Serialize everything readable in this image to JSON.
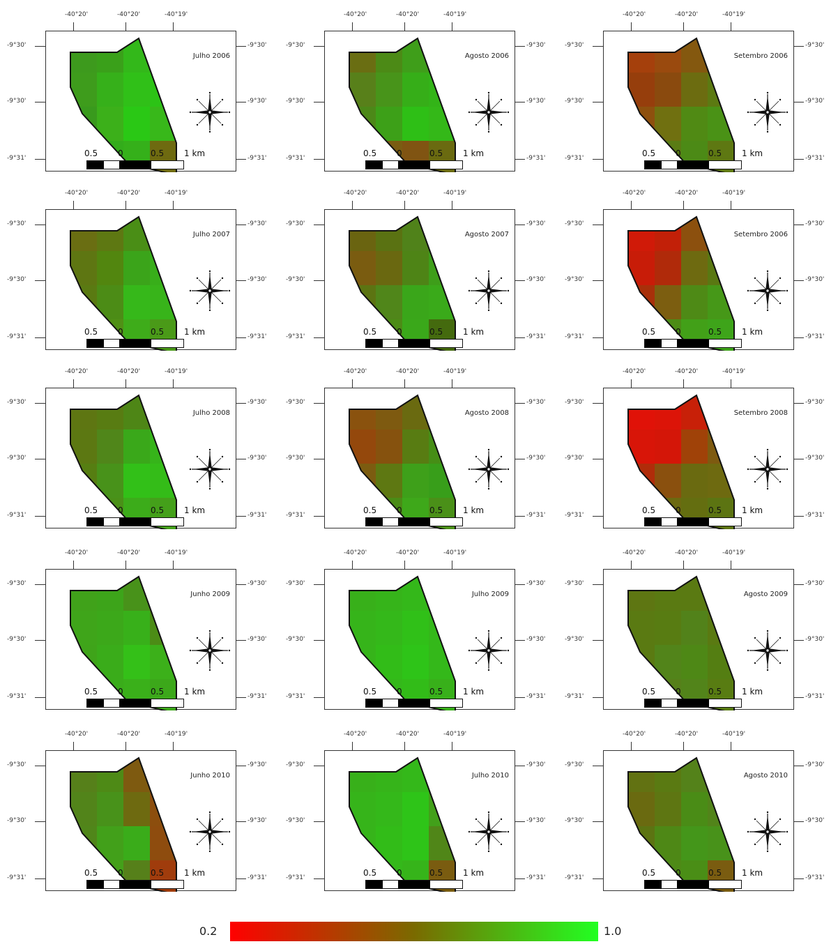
{
  "lon_labels": [
    "-40°20'",
    "-40°20'",
    "-40°19'"
  ],
  "lat_labels": [
    "-9°30'",
    "-9°30'",
    "-9°31'"
  ],
  "scalebar_labels": [
    "0.5",
    "0",
    "0.5",
    "1 km"
  ],
  "panels": [
    {
      "title": "Julho 2006",
      "colors": [
        "#3d9a1d",
        "#3aa01a",
        "#33b81a",
        "#2fbf18",
        "#3e9c1c",
        "#36b01a",
        "#30c018",
        "#2cc316",
        "#399a1d",
        "#3cb01a",
        "#2ac815",
        "#38b81a",
        "#3a9c1c",
        "#33ac1b",
        "#35b01a",
        "#6e6a10"
      ]
    },
    {
      "title": "Agosto 2006",
      "colors": [
        "#6a6e12",
        "#4c8a16",
        "#3f9e1a",
        "#3ca41a",
        "#58801a",
        "#48941a",
        "#36ae18",
        "#33b418",
        "#4c8818",
        "#3da018",
        "#2ebf16",
        "#34b818",
        "#4a8c18",
        "#7a5c12",
        "#805412",
        "#6a6a10"
      ]
    },
    {
      "title": "Setembro 2006",
      "colors": [
        "#a5400c",
        "#9a4a0e",
        "#84580f",
        "#726510",
        "#963e0c",
        "#8a4a0e",
        "#6c6c10",
        "#5c7a12",
        "#8e500e",
        "#707010",
        "#508a14",
        "#4a9216",
        "#7a5e10",
        "#5a7c14",
        "#4c8a16",
        "#5e7812"
      ]
    },
    {
      "title": "Julho 2007",
      "colors": [
        "#6a6e12",
        "#5e7812",
        "#4a8e16",
        "#4c8a16",
        "#5e7612",
        "#52860f",
        "#3ba41a",
        "#38ae1a",
        "#5a7a12",
        "#4c8c16",
        "#36b81a",
        "#38b41a",
        "#5a7a14",
        "#509016",
        "#3eac1a",
        "#4a9a18"
      ]
    },
    {
      "title": "Agosto 2007",
      "colors": [
        "#6a6410",
        "#5a7212",
        "#50821a",
        "#468e18",
        "#7a5c10",
        "#6a6810",
        "#4e8416",
        "#3e9e1a",
        "#5c7412",
        "#50861a",
        "#3aa61a",
        "#3aaa1a",
        "#5e7612",
        "#4c8c16",
        "#3aa81a",
        "#446a0e"
      ]
    },
    {
      "title": "Setembro 2006",
      "colors": [
        "#d01a08",
        "#c22008",
        "#8c500e",
        "#7a5c10",
        "#c81c08",
        "#b02a0a",
        "#6e6a10",
        "#5a7812",
        "#a8300a",
        "#7c5e10",
        "#4e8a16",
        "#469818",
        "#6a6a10",
        "#4c8c16",
        "#42a018",
        "#3ea41a"
      ]
    },
    {
      "title": "Julho 2008",
      "colors": [
        "#5e7612",
        "#587c12",
        "#4e8616",
        "#4c8a16",
        "#5c7812",
        "#50861a",
        "#3aa81a",
        "#36b41a",
        "#567e12",
        "#48921a",
        "#32c018",
        "#34bc18",
        "#5a7a12",
        "#4a9018",
        "#3cac1a",
        "#44a01a"
      ]
    },
    {
      "title": "Agosto 2008",
      "colors": [
        "#8a520e",
        "#7e5a10",
        "#6a6a10",
        "#587c12",
        "#94480c",
        "#86520e",
        "#587c12",
        "#468e16",
        "#7c5c10",
        "#5e7812",
        "#3ea01a",
        "#389e1a",
        "#66701a",
        "#4a8c16",
        "#3ea81a",
        "#4a9018"
      ]
    },
    {
      "title": "Setembro 2008",
      "colors": [
        "#e01208",
        "#dc1408",
        "#c82008",
        "#9a4a0c",
        "#d81508",
        "#d41608",
        "#a04208",
        "#7e5a10",
        "#b02c0a",
        "#8a500e",
        "#6a6a10",
        "#6e6a10",
        "#7a5e10",
        "#6c6a10",
        "#646e10",
        "#5c7412"
      ]
    },
    {
      "title": "Junho 2009",
      "colors": [
        "#40a21a",
        "#3da41a",
        "#48921a",
        "#58801a",
        "#3fa51a",
        "#3ca81a",
        "#38b01a",
        "#4c8c16",
        "#3fa41a",
        "#3aac1a",
        "#34c018",
        "#3cb01a",
        "#40a01a",
        "#3aac1a",
        "#3ab01a",
        "#3ca81a"
      ]
    },
    {
      "title": "Julho 2009",
      "colors": [
        "#38b01a",
        "#36b41a",
        "#34b81a",
        "#38b01a",
        "#36b41a",
        "#34b81a",
        "#30c018",
        "#34b81a",
        "#36b41a",
        "#32bc18",
        "#2ec418",
        "#34b81a",
        "#38b01a",
        "#34b81a",
        "#32bc18",
        "#38b01a"
      ]
    },
    {
      "title": "Agosto 2009",
      "colors": [
        "#5e7612",
        "#5a7a12",
        "#5a7a12",
        "#5e7612",
        "#5a7a12",
        "#587c12",
        "#52821a",
        "#5a7a12",
        "#5a7a12",
        "#52841a",
        "#4e8816",
        "#547e12",
        "#5a7a12",
        "#56801a",
        "#52841a",
        "#587c12"
      ]
    },
    {
      "title": "Junho 2010",
      "colors": [
        "#56801a",
        "#4e8a16",
        "#7e5a10",
        "#8a500e",
        "#52841a",
        "#48921a",
        "#6e6a10",
        "#8c4e0e",
        "#50861a",
        "#42a01a",
        "#3aac1a",
        "#8e4c0e",
        "#4e8816",
        "#44a01a",
        "#56801a",
        "#a03c0c"
      ]
    },
    {
      "title": "Julho 2010",
      "colors": [
        "#38b01a",
        "#36b41a",
        "#34b81a",
        "#38aa1a",
        "#36b41a",
        "#34b81a",
        "#2ec418",
        "#42a01a",
        "#36b41a",
        "#32bc18",
        "#2ec418",
        "#508618",
        "#38b01a",
        "#34b81a",
        "#36b41a",
        "#7a5c10"
      ]
    },
    {
      "title": "Agosto 2010",
      "colors": [
        "#627212",
        "#5a7a12",
        "#54821a",
        "#587c12",
        "#6a6a10",
        "#5e7612",
        "#4a8c16",
        "#52841a",
        "#5c7412",
        "#4e8816",
        "#44961a",
        "#48921a",
        "#5c7612",
        "#4e8a16",
        "#4a8e16",
        "#7a5c10"
      ]
    }
  ],
  "colorbar": {
    "min": "0.2",
    "max": "1.0"
  }
}
